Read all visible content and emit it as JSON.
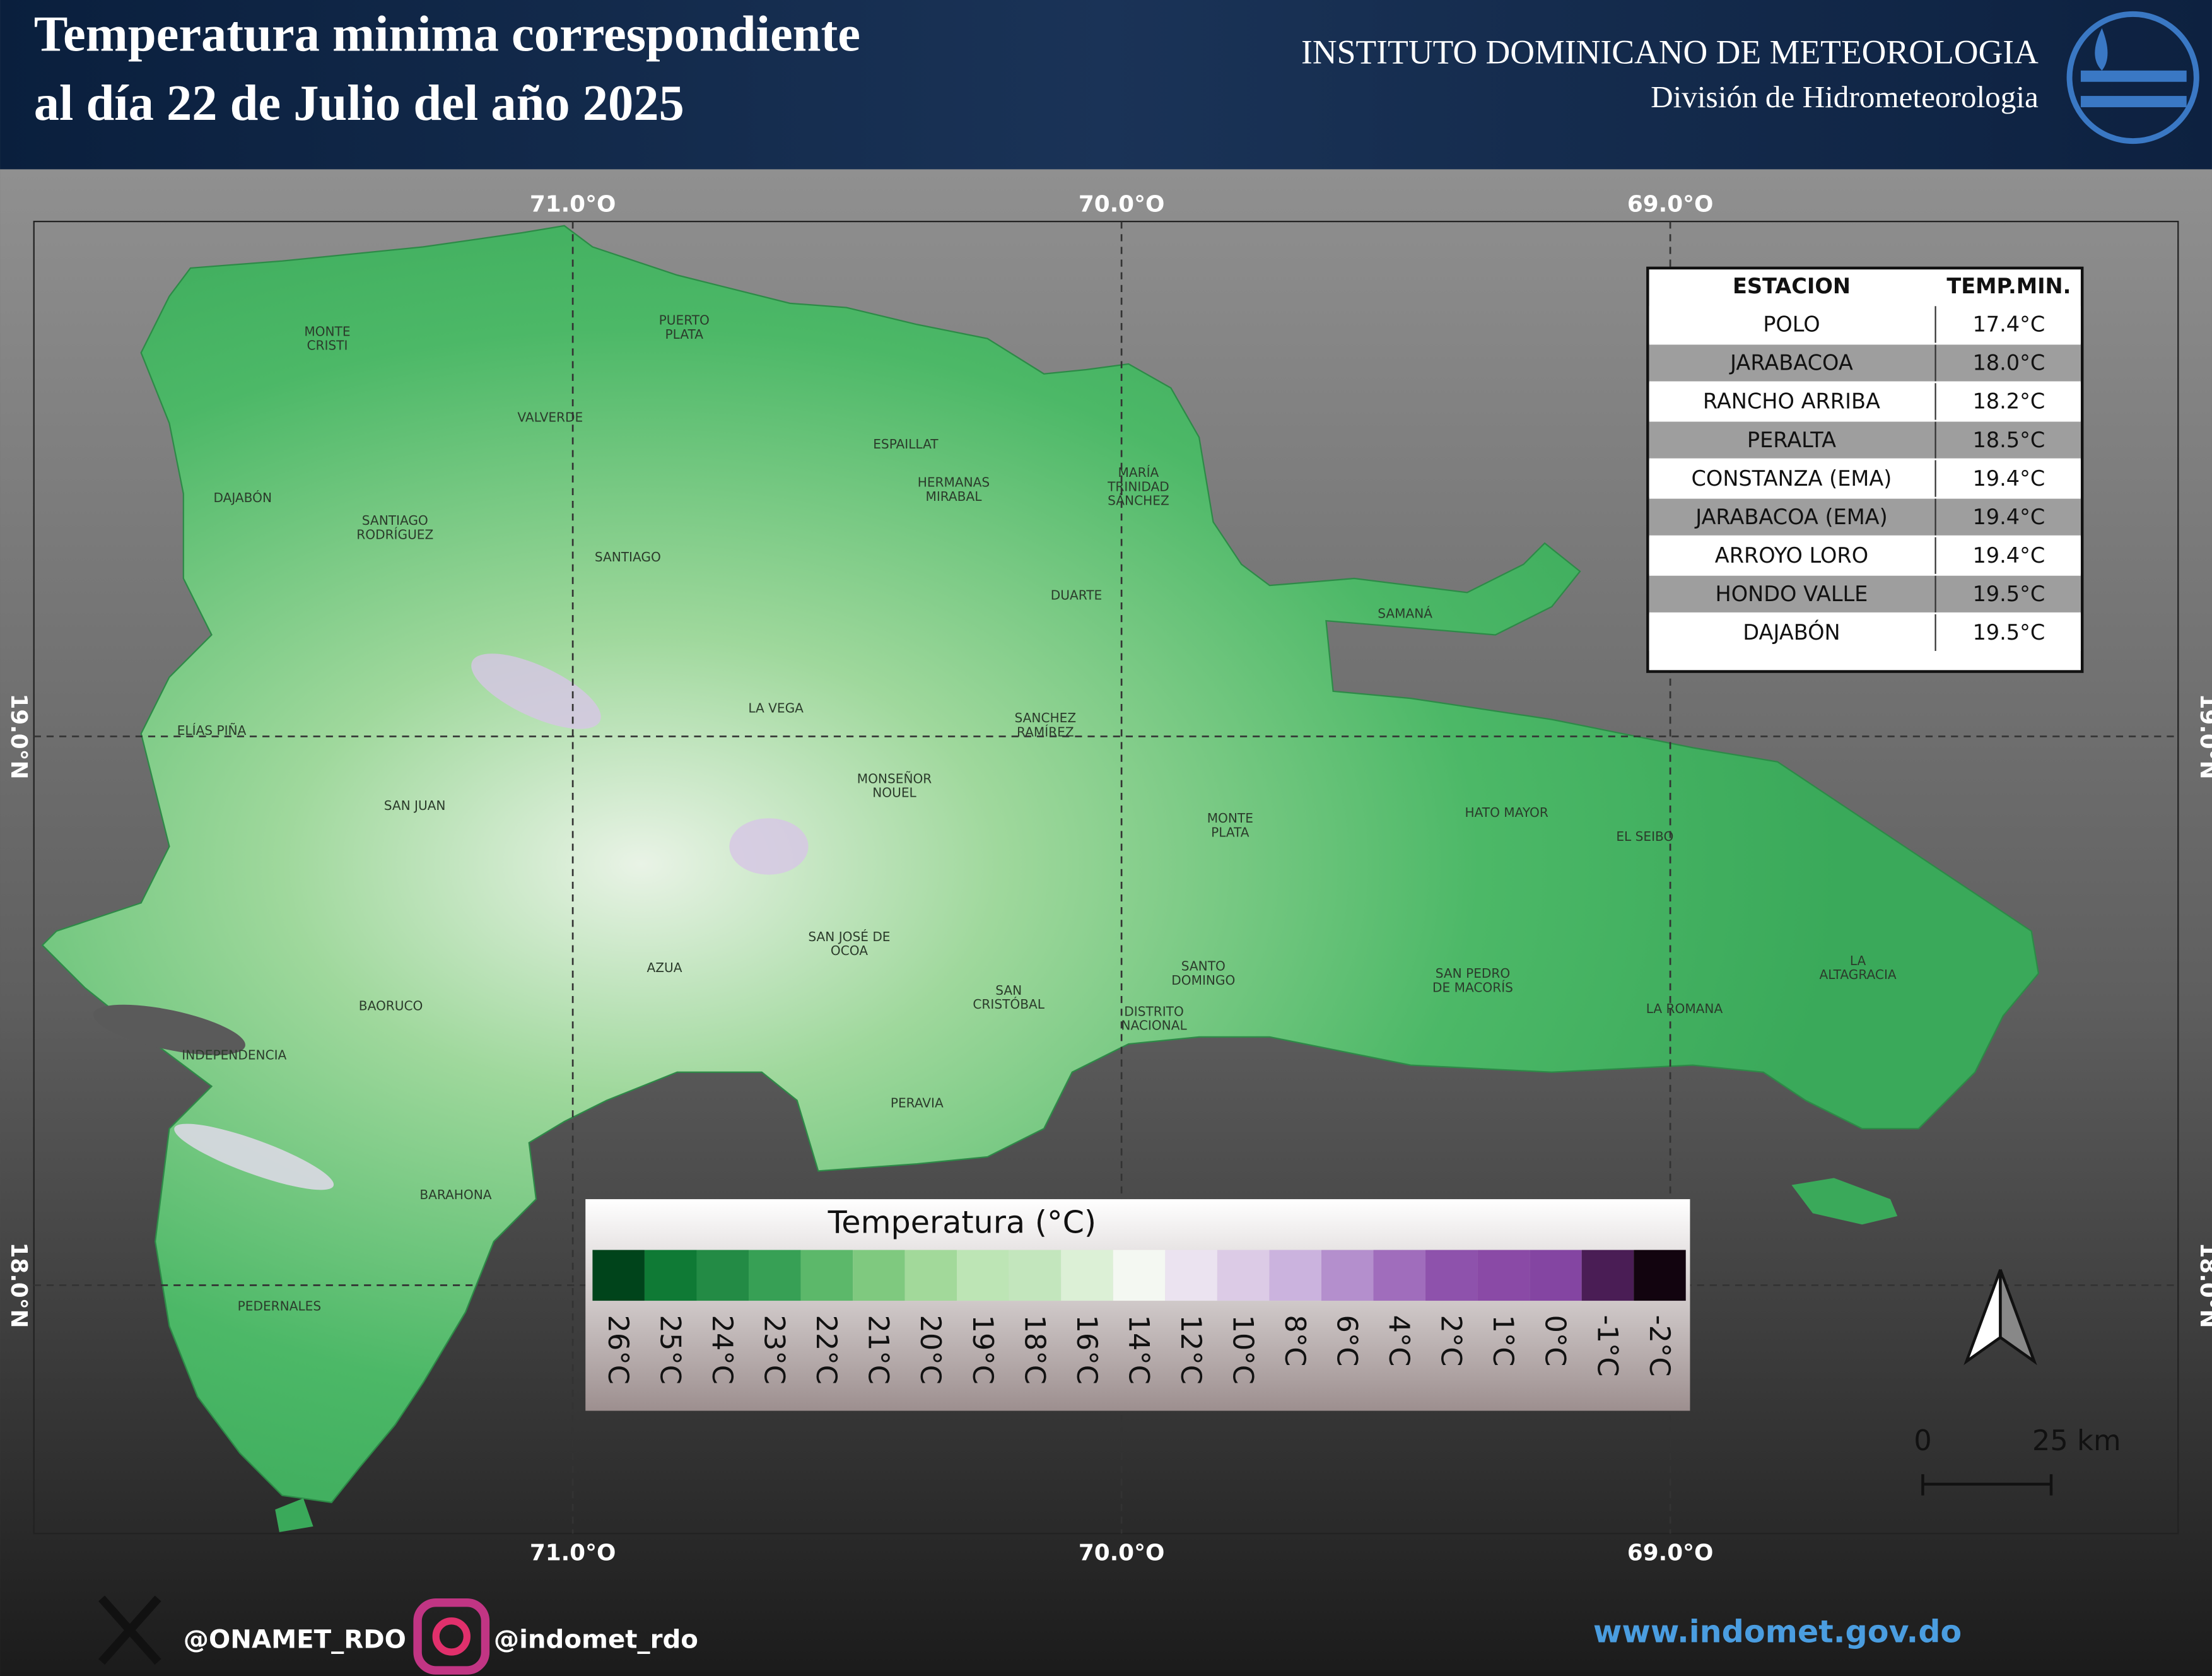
{
  "header": {
    "title_lines": [
      "Temperatura minima correspondiente",
      "al día 22 de Julio del año 2025"
    ],
    "institute": "INSTITUTO DOMINICANO DE METEOROLOGIA",
    "division": "División de Hidrometeorologia"
  },
  "map": {
    "longitude_labels": [
      "71.0°O",
      "70.0°O",
      "69.0°O"
    ],
    "latitude_labels": [
      "19.0°N",
      "18.0°N"
    ],
    "provinces": [
      [
        "MONTE",
        "CRISTI"
      ],
      [
        "PUERTO",
        "PLATA"
      ],
      [
        "VALVERDE"
      ],
      [
        "DAJABÓN"
      ],
      [
        "SANTIAGO",
        "RODRÍGUEZ"
      ],
      [
        "SANTIAGO"
      ],
      [
        "ESPAILLAT"
      ],
      [
        "HERMANAS",
        "MIRABAL"
      ],
      [
        "MARÍA",
        "TRINIDAD",
        "SÁNCHEZ"
      ],
      [
        "DUARTE"
      ],
      [
        "SAMANÁ"
      ],
      [
        "ELÍAS PIÑA"
      ],
      [
        "LA VEGA"
      ],
      [
        "SANCHEZ",
        "RAMÍREZ"
      ],
      [
        "MONSEÑOR",
        "NOUEL"
      ],
      [
        "SAN JUAN"
      ],
      [
        "MONTE",
        "PLATA"
      ],
      [
        "HATO MAYOR"
      ],
      [
        "EL SEIBO"
      ],
      [
        "SAN JOSÉ DE",
        "OCOA"
      ],
      [
        "AZUA"
      ],
      [
        "BAORUCO"
      ],
      [
        "SANTO",
        "DOMINGO"
      ],
      [
        "SAN",
        "CRISTÓBAL"
      ],
      [
        "DISTRITO",
        "NACIONAL"
      ],
      [
        "SAN PEDRO",
        "DE MACORÍS"
      ],
      [
        "LA ROMANA"
      ],
      [
        "LA",
        "ALTAGRACIA"
      ],
      [
        "INDEPENDENCIA"
      ],
      [
        "PERAVIA"
      ],
      [
        "BARAHONA"
      ],
      [
        "PEDERNALES"
      ]
    ],
    "scale_labels": [
      "0",
      "25 km"
    ]
  },
  "table": {
    "header": [
      "ESTACION",
      "TEMP.MIN."
    ],
    "rows": [
      [
        "POLO",
        "17.4°C"
      ],
      [
        "JARABACOA",
        "18.0°C"
      ],
      [
        "RANCHO ARRIBA",
        "18.2°C"
      ],
      [
        "PERALTA",
        "18.5°C"
      ],
      [
        "CONSTANZA (EMA)",
        "19.4°C"
      ],
      [
        "JARABACOA (EMA)",
        "19.4°C"
      ],
      [
        "ARROYO LORO",
        "19.4°C"
      ],
      [
        "HONDO VALLE",
        "19.5°C"
      ],
      [
        "DAJABÓN",
        "19.5°C"
      ]
    ]
  },
  "legend": {
    "title": "Temperatura (°C)",
    "labels": [
      "26°C",
      "25°C",
      "24°C",
      "23°C",
      "22°C",
      "21°C",
      "20°C",
      "19°C",
      "18°C",
      "16°C",
      "14°C",
      "12°C",
      "10°C",
      "8°C",
      "6°C",
      "4°C",
      "2°C",
      "1°C",
      "0°C",
      "-1°C",
      "-2°C"
    ]
  },
  "footer": {
    "x_handle": "@ONAMET_RDO",
    "instagram_handle": "@indomet_rdo",
    "website": "www.indomet.gov.do"
  }
}
